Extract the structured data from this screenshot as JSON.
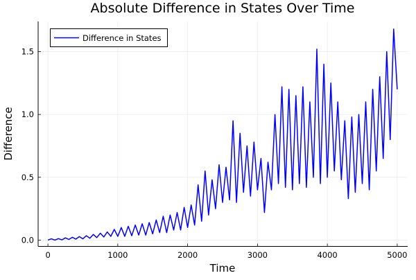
{
  "chart_data": {
    "type": "line",
    "title": "Absolute Difference in States Over Time",
    "xlabel": "Time",
    "ylabel": "Difference",
    "xlim": [
      -140,
      5150
    ],
    "ylim": [
      -0.05,
      1.74
    ],
    "xticks": [
      0,
      1000,
      2000,
      3000,
      4000,
      5000
    ],
    "xtick_labels": [
      "0",
      "1000",
      "2000",
      "3000",
      "4000",
      "5000"
    ],
    "yticks": [
      0.0,
      0.5,
      1.0,
      1.5
    ],
    "ytick_labels": [
      "0.0",
      "0.5",
      "1.0",
      "1.5"
    ],
    "grid": true,
    "legend": {
      "position": "top-left",
      "entries": [
        "Difference in States"
      ]
    },
    "series": [
      {
        "name": "Difference in States",
        "color": "#0000ff",
        "x_start": 0,
        "x_step": 50,
        "values": [
          0.0,
          0.01,
          0.0,
          0.012,
          0.002,
          0.018,
          0.005,
          0.022,
          0.008,
          0.028,
          0.01,
          0.035,
          0.015,
          0.045,
          0.02,
          0.055,
          0.025,
          0.065,
          0.03,
          0.085,
          0.03,
          0.1,
          0.03,
          0.11,
          0.035,
          0.12,
          0.04,
          0.13,
          0.04,
          0.14,
          0.05,
          0.16,
          0.06,
          0.19,
          0.06,
          0.2,
          0.08,
          0.22,
          0.08,
          0.26,
          0.1,
          0.28,
          0.12,
          0.44,
          0.15,
          0.55,
          0.2,
          0.48,
          0.25,
          0.6,
          0.3,
          0.58,
          0.32,
          0.95,
          0.3,
          0.85,
          0.38,
          0.75,
          0.35,
          0.78,
          0.4,
          0.65,
          0.22,
          0.62,
          0.4,
          1.0,
          0.45,
          1.22,
          0.42,
          1.2,
          0.4,
          1.15,
          0.45,
          1.22,
          0.42,
          1.1,
          0.5,
          1.52,
          0.45,
          1.4,
          0.5,
          1.25,
          0.55,
          1.1,
          0.48,
          0.95,
          0.33,
          0.98,
          0.38,
          1.0,
          0.45,
          1.1,
          0.4,
          1.2,
          0.55,
          1.3,
          0.65,
          1.5,
          0.8,
          1.68,
          1.2
        ]
      }
    ]
  }
}
